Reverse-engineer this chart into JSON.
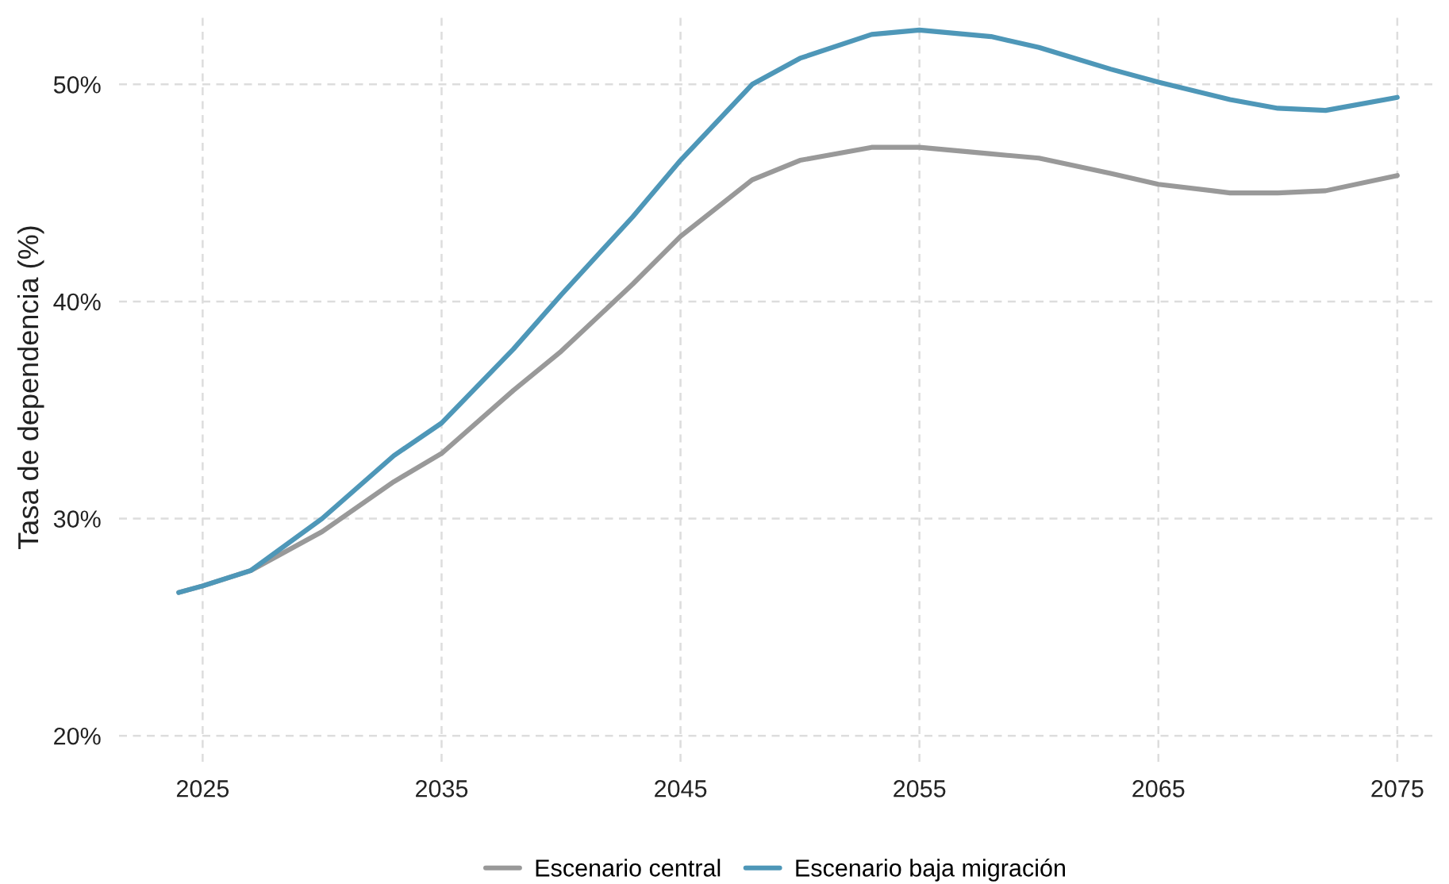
{
  "chart_data": {
    "type": "line",
    "ylabel": "Tasa de dependencia (%)",
    "x": [
      2024,
      2025,
      2027,
      2030,
      2033,
      2035,
      2038,
      2040,
      2043,
      2045,
      2048,
      2050,
      2053,
      2055,
      2058,
      2060,
      2063,
      2065,
      2068,
      2070,
      2072,
      2075
    ],
    "series": [
      {
        "name": "Escenario central",
        "color": "#999999",
        "values": [
          26.6,
          26.9,
          27.6,
          29.4,
          31.7,
          33.0,
          35.9,
          37.7,
          40.8,
          43.0,
          45.6,
          46.5,
          47.1,
          47.1,
          46.8,
          46.6,
          45.9,
          45.4,
          45.0,
          45.0,
          45.1,
          45.8
        ]
      },
      {
        "name": "Escenario baja migración",
        "color": "#4e97b8",
        "values": [
          26.6,
          26.9,
          27.6,
          30.0,
          32.9,
          34.4,
          37.8,
          40.3,
          43.9,
          46.5,
          50.0,
          51.2,
          52.3,
          52.5,
          52.2,
          51.7,
          50.7,
          50.1,
          49.3,
          48.9,
          48.8,
          49.4
        ]
      }
    ],
    "xlim": [
      2021.5,
      2076.5
    ],
    "xticks": [
      2025,
      2035,
      2045,
      2055,
      2065,
      2075
    ],
    "ylim": [
      18.8,
      53.3
    ],
    "yticks": [
      {
        "value": 20,
        "label": "20%"
      },
      {
        "value": 30,
        "label": "30%"
      },
      {
        "value": 40,
        "label": "40%"
      },
      {
        "value": 50,
        "label": "50%"
      }
    ],
    "grid": true,
    "legend": "bottom",
    "line_style": "solid",
    "marker": "none"
  }
}
